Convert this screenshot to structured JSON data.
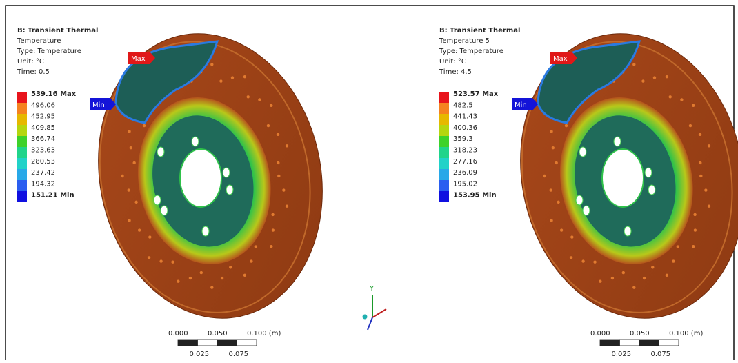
{
  "panels": [
    {
      "title": "B: Transient Thermal",
      "lines": [
        "Temperature",
        "Type: Temperature",
        "Unit: °C",
        "Time: 0.5"
      ],
      "legend": [
        "539.16 Max",
        "496.06",
        "452.95",
        "409.85",
        "366.74",
        "323.63",
        "280.53",
        "237.42",
        "194.32",
        "151.21 Min"
      ],
      "max_tag": "Max",
      "min_tag": "Min",
      "scale_top": [
        "0.000",
        "0.050",
        "0.100 (m)"
      ],
      "scale_bottom": [
        "0.025",
        "0.075"
      ]
    },
    {
      "title": "B: Transient Thermal",
      "lines": [
        "Temperature 5",
        "Type: Temperature",
        "Unit: °C",
        "Time: 4.5"
      ],
      "legend": [
        "523.57 Max",
        "482.5",
        "441.43",
        "400.36",
        "359.3",
        "318.23",
        "277.16",
        "236.09",
        "195.02",
        "153.95 Min"
      ],
      "max_tag": "Max",
      "min_tag": "Min",
      "scale_top": [
        "0.000",
        "0.050",
        "0.100 (m)"
      ],
      "scale_bottom": [
        "0.025",
        "0.075"
      ]
    }
  ],
  "triad": {
    "y_label": "Y"
  }
}
